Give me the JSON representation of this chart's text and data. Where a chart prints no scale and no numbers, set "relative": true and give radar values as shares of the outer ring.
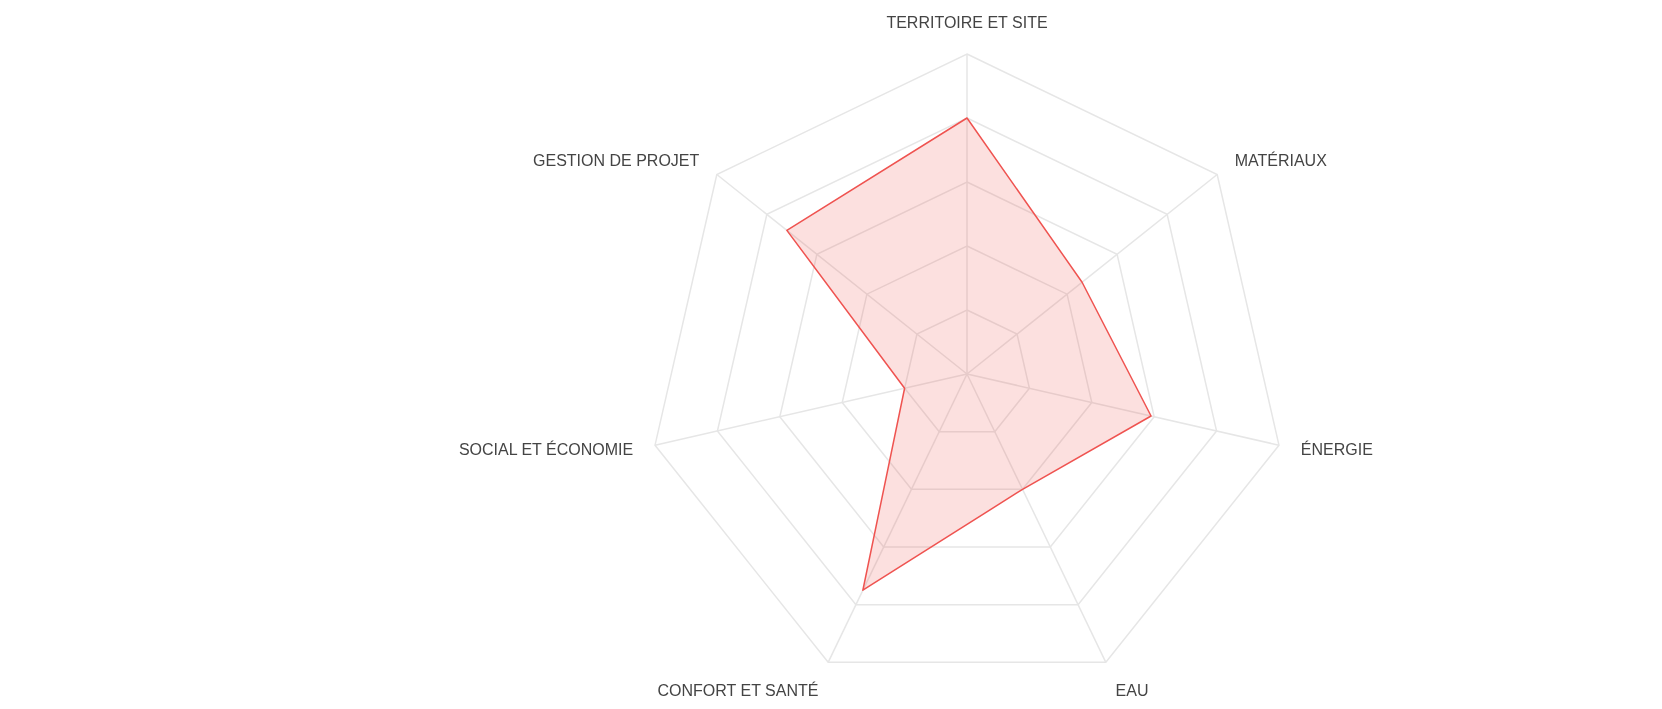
{
  "chart_data": {
    "type": "radar",
    "relative": true,
    "grid": true,
    "categories": [
      "TERRITOIRE ET SITE",
      "MATÉRIAUX",
      "ÉNERGIE",
      "EAU",
      "CONFORT ET SANTÉ",
      "SOCIAL ET ÉCONOMIE",
      "GESTION DE PROJET"
    ],
    "series": [
      {
        "color": "#ef5350",
        "values": [
          0.8,
          0.46,
          0.59,
          0.4,
          0.75,
          0.2,
          0.72
        ]
      }
    ]
  }
}
